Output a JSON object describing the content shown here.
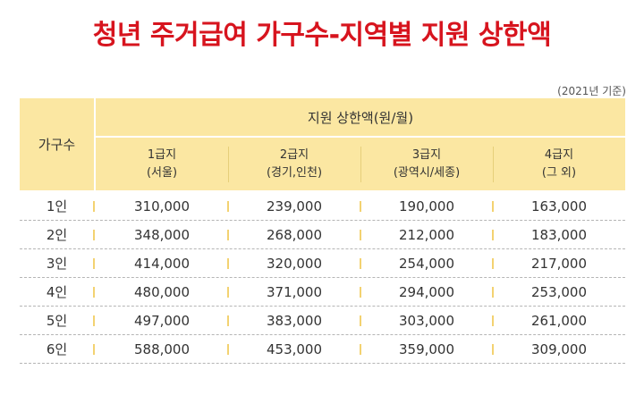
{
  "title": "청년 주거급여 가구수-지역별 지원 상한액",
  "basis": "(2021년 기준)",
  "table": {
    "household_header": "가구수",
    "amount_header": "지원 상한액(원/월)",
    "tiers": [
      {
        "name": "1급지",
        "region": "(서울)"
      },
      {
        "name": "2급지",
        "region": "(경기,인천)"
      },
      {
        "name": "3급지",
        "region": "(광역시/세종)"
      },
      {
        "name": "4급지",
        "region": "(그 외)"
      }
    ],
    "rows": [
      {
        "label": "1인",
        "values": [
          "310,000",
          "239,000",
          "190,000",
          "163,000"
        ]
      },
      {
        "label": "2인",
        "values": [
          "348,000",
          "268,000",
          "212,000",
          "183,000"
        ]
      },
      {
        "label": "3인",
        "values": [
          "414,000",
          "320,000",
          "254,000",
          "217,000"
        ]
      },
      {
        "label": "4인",
        "values": [
          "480,000",
          "371,000",
          "294,000",
          "253,000"
        ]
      },
      {
        "label": "5인",
        "values": [
          "497,000",
          "383,000",
          "303,000",
          "261,000"
        ]
      },
      {
        "label": "6인",
        "values": [
          "588,000",
          "453,000",
          "359,000",
          "309,000"
        ]
      }
    ]
  },
  "colors": {
    "title": "#d7141e",
    "header_bg": "#fbe7a2",
    "separator": "#f3d271"
  }
}
